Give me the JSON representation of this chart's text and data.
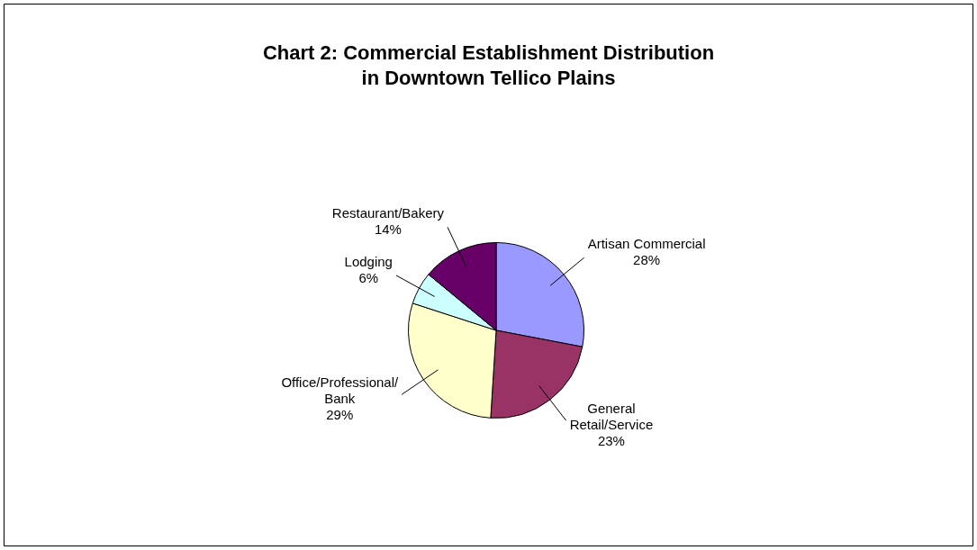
{
  "chart_data": {
    "type": "pie",
    "title": "Chart 2: Commercial Establishment Distribution\nin Downtown Tellico Plains",
    "categories": [
      "Artisan Commercial",
      "General\nRetail/Service",
      "Office/Professional/\nBank",
      "Lodging",
      "Restaurant/Bakery"
    ],
    "values": [
      28,
      23,
      29,
      6,
      14
    ],
    "colors": [
      "#9999ff",
      "#993366",
      "#ffffcc",
      "#ccffff",
      "#660066"
    ],
    "value_labels": [
      "28%",
      "23%",
      "29%",
      "6%",
      "14%"
    ],
    "legend": false
  }
}
